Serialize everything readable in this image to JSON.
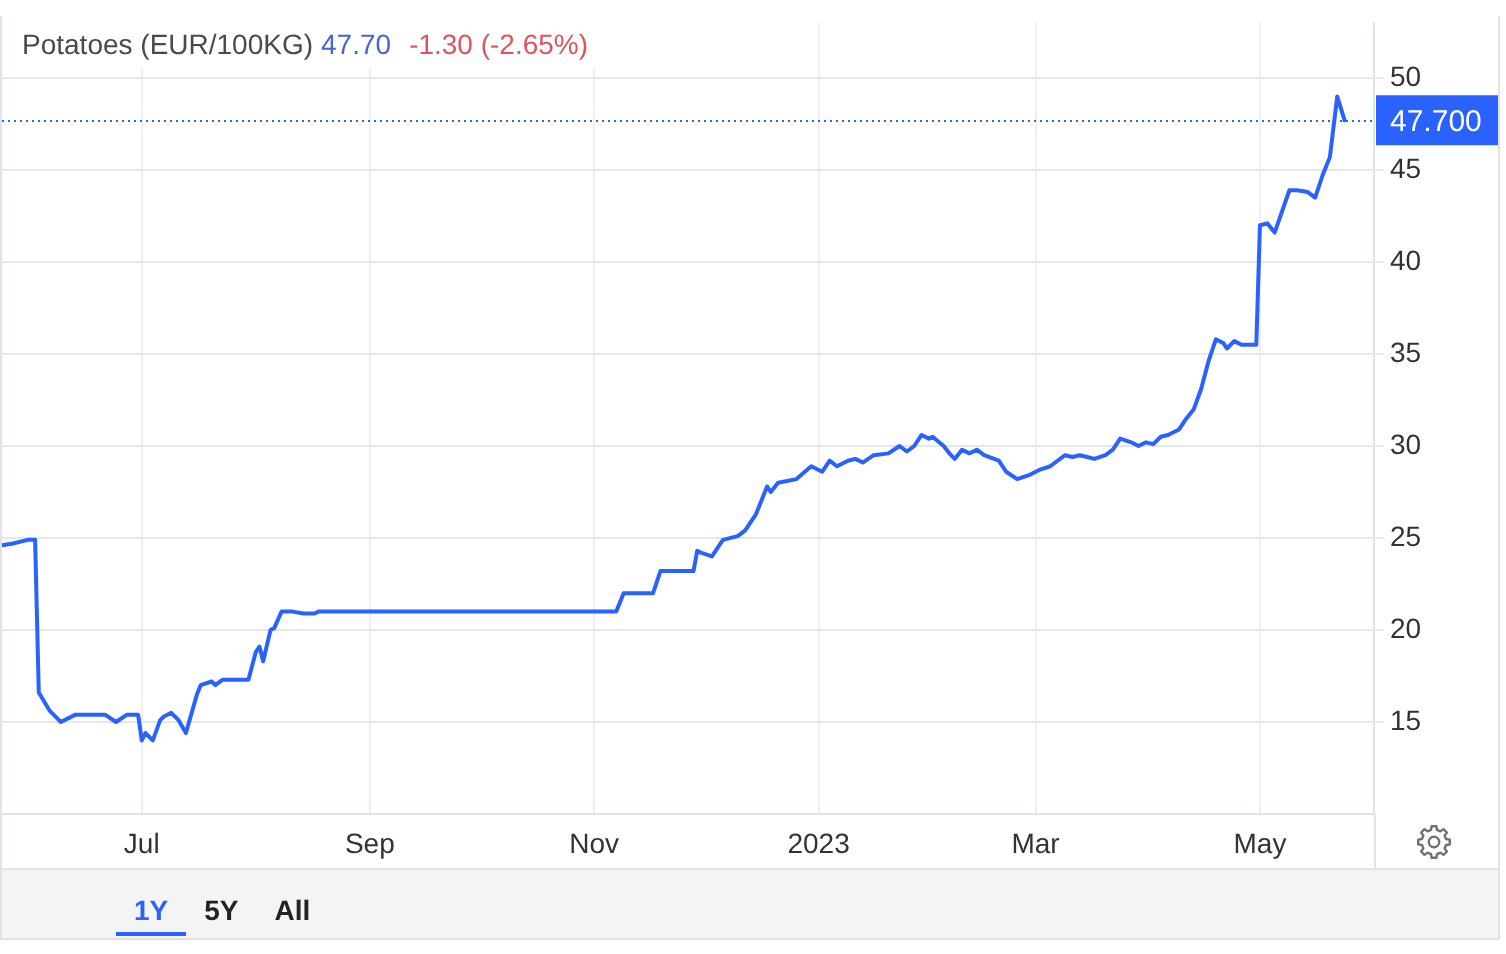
{
  "chart_data": {
    "type": "line",
    "title": "Potatoes (EUR/100KG)",
    "annotations": [
      "47.70",
      "-1.30 (-2.65%)",
      "1Y",
      "5Y",
      "All"
    ],
    "x": [
      "2022-05-24",
      "2022-05-27",
      "2022-05-31",
      "2022-06-02",
      "2022-06-03",
      "2022-06-06",
      "2022-06-07",
      "2022-06-09",
      "2022-06-13",
      "2022-06-21",
      "2022-06-24",
      "2022-06-27",
      "2022-06-30",
      "2022-07-01",
      "2022-07-02",
      "2022-07-03",
      "2022-07-04",
      "2022-07-06",
      "2022-07-07",
      "2022-07-09",
      "2022-07-11",
      "2022-07-13",
      "2022-07-16",
      "2022-07-17",
      "2022-07-20",
      "2022-07-21",
      "2022-07-23",
      "2022-07-30",
      "2022-08-01",
      "2022-08-02",
      "2022-08-03",
      "2022-08-05",
      "2022-08-06",
      "2022-08-08",
      "2022-08-11",
      "2022-08-14",
      "2022-08-17",
      "2022-08-18",
      "2022-11-07",
      "2022-11-09",
      "2022-11-17",
      "2022-11-19",
      "2022-11-28",
      "2022-11-29",
      "2022-11-30",
      "2022-12-03",
      "2022-12-06",
      "2022-12-10",
      "2022-12-12",
      "2022-12-15",
      "2022-12-18",
      "2022-12-19",
      "2022-12-21",
      "2022-12-26",
      "2022-12-30",
      "2023-01-02",
      "2023-01-04",
      "2023-01-06",
      "2023-01-09",
      "2023-01-11",
      "2023-01-13",
      "2023-01-16",
      "2023-01-20",
      "2023-01-23",
      "2023-01-25",
      "2023-01-27",
      "2023-01-29",
      "2023-01-31",
      "2023-02-01",
      "2023-02-04",
      "2023-02-06",
      "2023-02-07",
      "2023-02-09",
      "2023-02-11",
      "2023-02-13",
      "2023-02-15",
      "2023-02-19",
      "2023-02-21",
      "2023-02-24",
      "2023-02-27",
      "2023-03-02",
      "2023-03-05",
      "2023-03-09",
      "2023-03-11",
      "2023-03-13",
      "2023-03-15",
      "2023-03-17",
      "2023-03-20",
      "2023-03-22",
      "2023-03-24",
      "2023-03-27",
      "2023-03-29",
      "2023-03-31",
      "2023-04-02",
      "2023-04-04",
      "2023-04-06",
      "2023-04-09",
      "2023-04-11",
      "2023-04-13",
      "2023-04-15",
      "2023-04-17",
      "2023-04-19",
      "2023-04-21",
      "2023-04-22",
      "2023-04-24",
      "2023-04-26",
      "2023-04-30",
      "2023-05-01",
      "2023-05-03",
      "2023-05-05",
      "2023-05-09",
      "2023-05-11",
      "2023-05-14",
      "2023-05-16",
      "2023-05-18",
      "2023-05-20",
      "2023-05-22",
      "2023-05-24"
    ],
    "series": [
      {
        "color": "#2962ff",
        "values": [
          24.6,
          24.7,
          24.9,
          24.9,
          16.6,
          15.6,
          15.4,
          15.0,
          15.4,
          15.4,
          15.0,
          15.4,
          15.4,
          14.0,
          14.4,
          14.2,
          14.0,
          15.1,
          15.3,
          15.5,
          15.1,
          14.4,
          16.5,
          17.0,
          17.2,
          17.0,
          17.3,
          17.3,
          18.8,
          19.1,
          18.3,
          20.0,
          20.1,
          21.0,
          21.0,
          20.9,
          20.9,
          21.0,
          21.0,
          22.0,
          22.0,
          23.2,
          23.2,
          24.3,
          24.2,
          24.0,
          24.9,
          25.1,
          25.4,
          26.3,
          27.8,
          27.5,
          28.0,
          28.2,
          28.9,
          28.6,
          29.2,
          28.9,
          29.2,
          29.3,
          29.1,
          29.5,
          29.6,
          30.0,
          29.7,
          30.0,
          30.6,
          30.4,
          30.5,
          30.0,
          29.5,
          29.3,
          29.8,
          29.6,
          29.8,
          29.5,
          29.2,
          28.6,
          28.2,
          28.4,
          28.7,
          28.9,
          29.5,
          29.4,
          29.5,
          29.4,
          29.3,
          29.5,
          29.8,
          30.4,
          30.2,
          30.0,
          30.2,
          30.1,
          30.5,
          30.6,
          30.9,
          31.5,
          32.0,
          33.1,
          34.6,
          35.8,
          35.6,
          35.3,
          35.7,
          35.5,
          35.5,
          42.0,
          42.1,
          41.6,
          43.9,
          43.9,
          43.8,
          43.5,
          44.7,
          45.7,
          49.0,
          47.7
        ]
      }
    ],
    "xlim": [
      "2022-05-24",
      "2023-06-01"
    ],
    "xticks": [
      {
        "value": "2022-07-01",
        "label": "Jul"
      },
      {
        "value": "2022-09-01",
        "label": "Sep"
      },
      {
        "value": "2022-11-01",
        "label": "Nov"
      },
      {
        "value": "2023-01-01",
        "label": "2023"
      },
      {
        "value": "2023-03-01",
        "label": "Mar"
      },
      {
        "value": "2023-05-01",
        "label": "May"
      }
    ],
    "ylim": [
      10,
      53
    ],
    "yticks": [
      15,
      20,
      25,
      30,
      35,
      40,
      45,
      50
    ],
    "grid": true,
    "legend": false,
    "marker": "none",
    "line_style": "solid",
    "ref_lines": [
      {
        "axis": "y",
        "value": 47.7,
        "label": "47.700",
        "color": "#2962ff",
        "line_style": "dotted"
      }
    ]
  }
}
